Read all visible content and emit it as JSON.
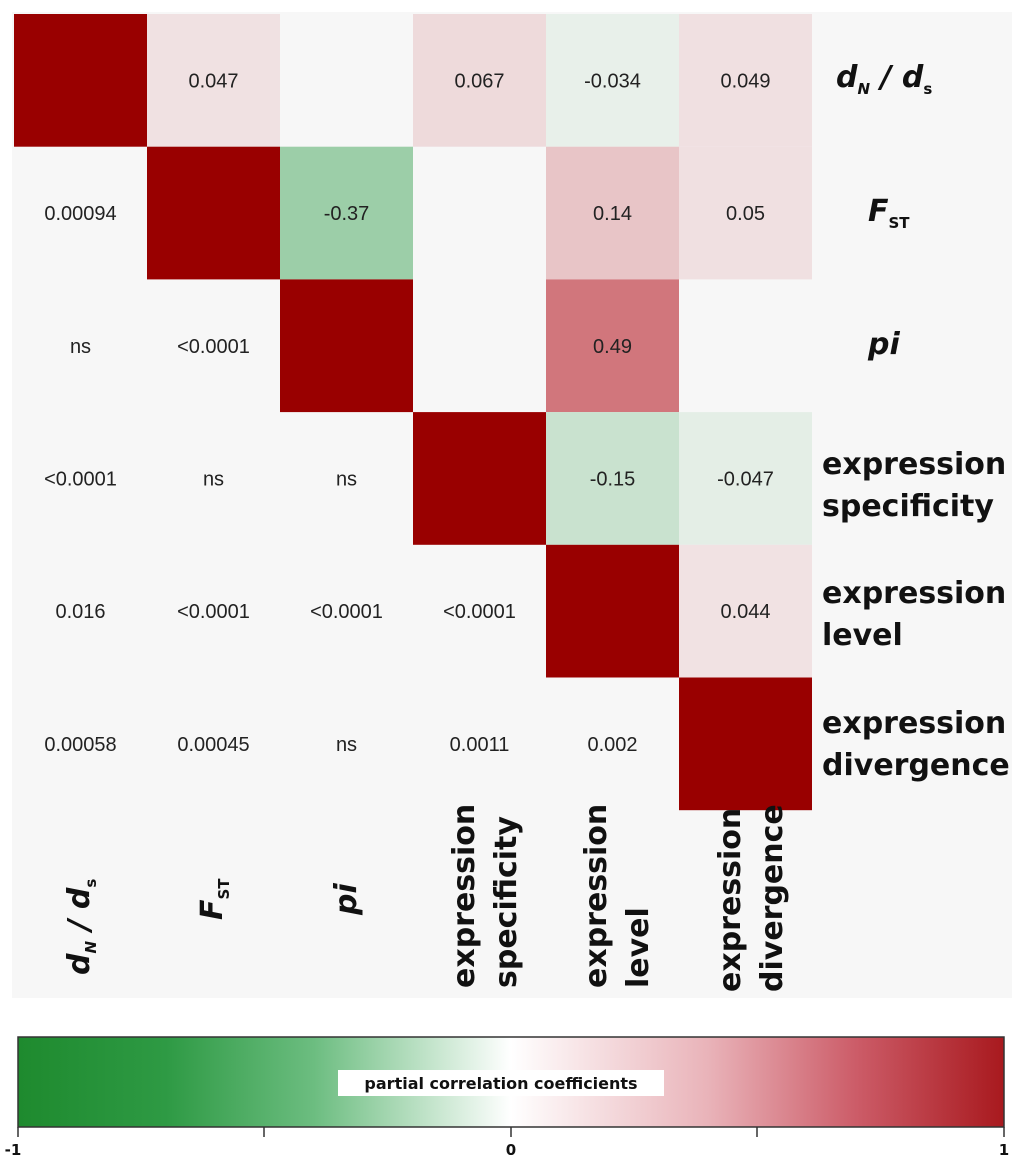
{
  "chart_data": {
    "type": "heatmap",
    "variables": [
      {
        "id": "dnds",
        "main": "d",
        "sub1": "N",
        "mid": " / d",
        "sub2": "s"
      },
      {
        "id": "fst",
        "main": "F",
        "sub1": "ST"
      },
      {
        "id": "pi",
        "main": "pi"
      },
      {
        "id": "spec",
        "lines": [
          "expression",
          "specificity"
        ]
      },
      {
        "id": "level",
        "lines": [
          "expression",
          "level"
        ]
      },
      {
        "id": "div",
        "lines": [
          "expression",
          "divergence"
        ]
      }
    ],
    "upper_coefficients": [
      [
        null,
        "0.047",
        "",
        "0.067",
        "-0.034",
        "0.049"
      ],
      [
        null,
        null,
        "-0.37",
        "",
        "0.14",
        "0.05"
      ],
      [
        null,
        null,
        null,
        "",
        "0.49",
        ""
      ],
      [
        null,
        null,
        null,
        null,
        "-0.15",
        "-0.047"
      ],
      [
        null,
        null,
        null,
        null,
        null,
        "0.044"
      ],
      [
        null,
        null,
        null,
        null,
        null,
        null
      ]
    ],
    "lower_pvalues": [
      [
        null,
        null,
        null,
        null,
        null,
        null
      ],
      [
        "0.00094",
        null,
        null,
        null,
        null,
        null
      ],
      [
        "ns",
        "<0.0001",
        null,
        null,
        null,
        null
      ],
      [
        "<0.0001",
        "ns",
        "ns",
        null,
        null,
        null
      ],
      [
        "0.016",
        "<0.0001",
        "<0.0001",
        "<0.0001",
        null,
        null
      ],
      [
        "0.00058",
        "0.00045",
        "ns",
        "0.0011",
        "0.002",
        null
      ]
    ],
    "diagonal_color": "#990000",
    "colorbar": {
      "title": "partial correlation coefficients",
      "min_label": "-1",
      "mid_label": "0",
      "max_label": "1",
      "range": [
        -1,
        1
      ],
      "colors": {
        "negative": "#1e8a2e",
        "zero": "#ffffff",
        "positive": "#a8191e"
      }
    }
  }
}
